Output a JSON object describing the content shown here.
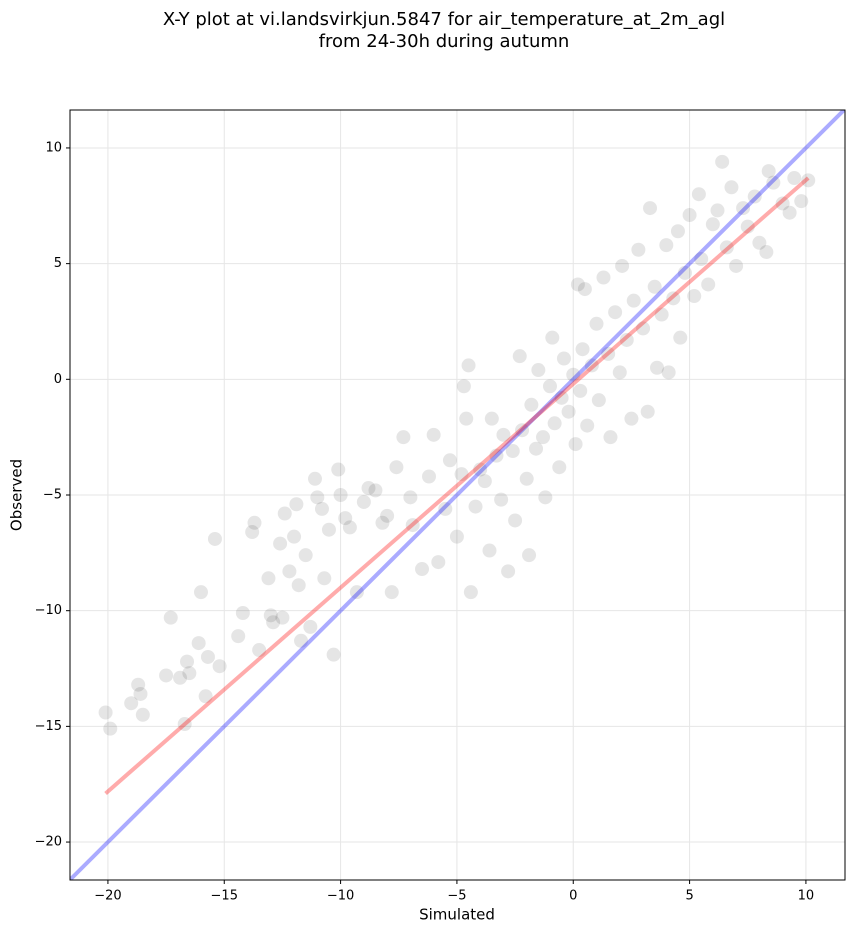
{
  "chart_data": {
    "type": "scatter",
    "title": [
      "X-Y plot at vi.landsvirkjun.5847 for air_temperature_at_2m_agl",
      "from 24-30h during autumn"
    ],
    "xlabel": "Simulated",
    "ylabel": "Observed",
    "xlim": [
      -21.63,
      11.68
    ],
    "ylim": [
      -21.64,
      11.64
    ],
    "xticks": [
      {
        "value": -20,
        "label": "−20"
      },
      {
        "value": -15,
        "label": "−15"
      },
      {
        "value": -10,
        "label": "−10"
      },
      {
        "value": -5,
        "label": "−5"
      },
      0,
      5,
      10
    ],
    "yticks": [
      {
        "value": -20,
        "label": "−20"
      },
      {
        "value": -15,
        "label": "−15"
      },
      {
        "value": -10,
        "label": "−10"
      },
      {
        "value": -5,
        "label": "−5"
      },
      0,
      5,
      10
    ],
    "grid": true,
    "points": {
      "color": "#000000",
      "alpha": 0.1,
      "x": [
        -20.1,
        -19.9,
        -19,
        -18.7,
        -18.5,
        -18.6,
        -17.3,
        -17.5,
        -16.9,
        -16.6,
        -16.5,
        -16.7,
        -16,
        -16.1,
        -15.8,
        -15.7,
        -15.2,
        -15.4,
        -14.4,
        -14.2,
        -13.8,
        -13.7,
        -13.5,
        -13.1,
        -13,
        -12.9,
        -12.5,
        -12.6,
        -12.4,
        -12.2,
        -12,
        -11.9,
        -11.8,
        -11.7,
        -11.5,
        -11.3,
        -11.1,
        -11,
        -10.8,
        -10.7,
        -10.5,
        -10.3,
        -10.1,
        -10,
        -9.8,
        -9.6,
        -9.3,
        -9,
        -8.8,
        -8.5,
        -8.2,
        -8,
        -7.8,
        -7.6,
        -7.3,
        -7,
        -6.9,
        -6.5,
        -6.2,
        -6,
        -5.8,
        -5.5,
        -5.3,
        -5,
        -4.8,
        -4.7,
        -4.6,
        -4.5,
        -4.4,
        -4.2,
        -4,
        -3.8,
        -3.6,
        -3.5,
        -3.3,
        -3.1,
        -3,
        -2.8,
        -2.6,
        -2.5,
        -2.3,
        -2.2,
        -2,
        -1.9,
        -1.8,
        -1.6,
        -1.5,
        -1.3,
        -1.2,
        -1,
        -0.9,
        -0.8,
        -0.6,
        -0.5,
        -0.4,
        -0.2,
        0,
        0.1,
        0.2,
        0.3,
        0.4,
        0.5,
        0.6,
        0.8,
        1,
        1.1,
        1.3,
        1.5,
        1.6,
        1.8,
        2,
        2.1,
        2.3,
        2.5,
        2.6,
        2.8,
        3,
        3.2,
        3.3,
        3.5,
        3.6,
        3.8,
        4,
        4.1,
        4.3,
        4.5,
        4.6,
        4.8,
        5,
        5.2,
        5.4,
        5.5,
        5.8,
        6,
        6.2,
        6.4,
        6.6,
        6.8,
        7,
        7.3,
        7.5,
        7.8,
        8,
        8.3,
        8.4,
        8.6,
        9,
        9.3,
        9.5,
        9.8,
        10.1
      ],
      "values": [
        -14.4,
        -15.1,
        -14,
        -13.2,
        -14.5,
        -13.6,
        -10.3,
        -12.8,
        -12.9,
        -12.2,
        -12.7,
        -14.9,
        -9.2,
        -11.4,
        -13.7,
        -12,
        -12.4,
        -6.9,
        -11.1,
        -10.1,
        -6.6,
        -6.2,
        -11.7,
        -8.6,
        -10.2,
        -10.5,
        -10.3,
        -7.1,
        -5.8,
        -8.3,
        -6.8,
        -5.4,
        -8.9,
        -11.3,
        -7.6,
        -10.7,
        -4.3,
        -5.1,
        -5.6,
        -8.6,
        -6.5,
        -11.9,
        -3.9,
        -5,
        -6,
        -6.4,
        -9.2,
        -5.3,
        -4.7,
        -4.8,
        -6.2,
        -5.9,
        -9.2,
        -3.8,
        -2.5,
        -5.1,
        -6.3,
        -8.2,
        -4.2,
        -2.4,
        -7.9,
        -5.6,
        -3.5,
        -6.8,
        -4.1,
        -0.3,
        -1.7,
        0.6,
        -9.2,
        -5.5,
        -3.9,
        -4.4,
        -7.4,
        -1.7,
        -3.3,
        -5.2,
        -2.4,
        -8.3,
        -3.1,
        -6.1,
        1,
        -2.2,
        -4.3,
        -7.6,
        -1.1,
        -3,
        0.4,
        -2.5,
        -5.1,
        -0.3,
        1.8,
        -1.9,
        -3.8,
        -0.8,
        0.9,
        -1.4,
        0.2,
        -2.8,
        4.1,
        -0.5,
        1.3,
        3.9,
        -2,
        0.6,
        2.4,
        -0.9,
        4.4,
        1.1,
        -2.5,
        2.9,
        0.3,
        4.9,
        1.7,
        -1.7,
        3.4,
        5.6,
        2.2,
        -1.4,
        7.4,
        4,
        0.5,
        2.8,
        5.8,
        0.3,
        3.5,
        6.4,
        1.8,
        4.6,
        7.1,
        3.6,
        8,
        5.2,
        4.1,
        6.7,
        7.3,
        9.4,
        5.7,
        8.3,
        4.9,
        7.4,
        6.6,
        7.9,
        5.9,
        5.5,
        9,
        8.5,
        7.6,
        7.2,
        8.7,
        7.7,
        8.6
      ]
    },
    "lines": [
      {
        "color": "#0000ff",
        "alpha": 0.33,
        "x": [
          -21.63,
          11.68
        ],
        "values": [
          -21.63,
          11.68
        ]
      },
      {
        "color": "#ff0000",
        "alpha": 0.33,
        "x": [
          -20.1,
          10.1
        ],
        "values": [
          -17.9,
          8.7
        ]
      }
    ]
  }
}
